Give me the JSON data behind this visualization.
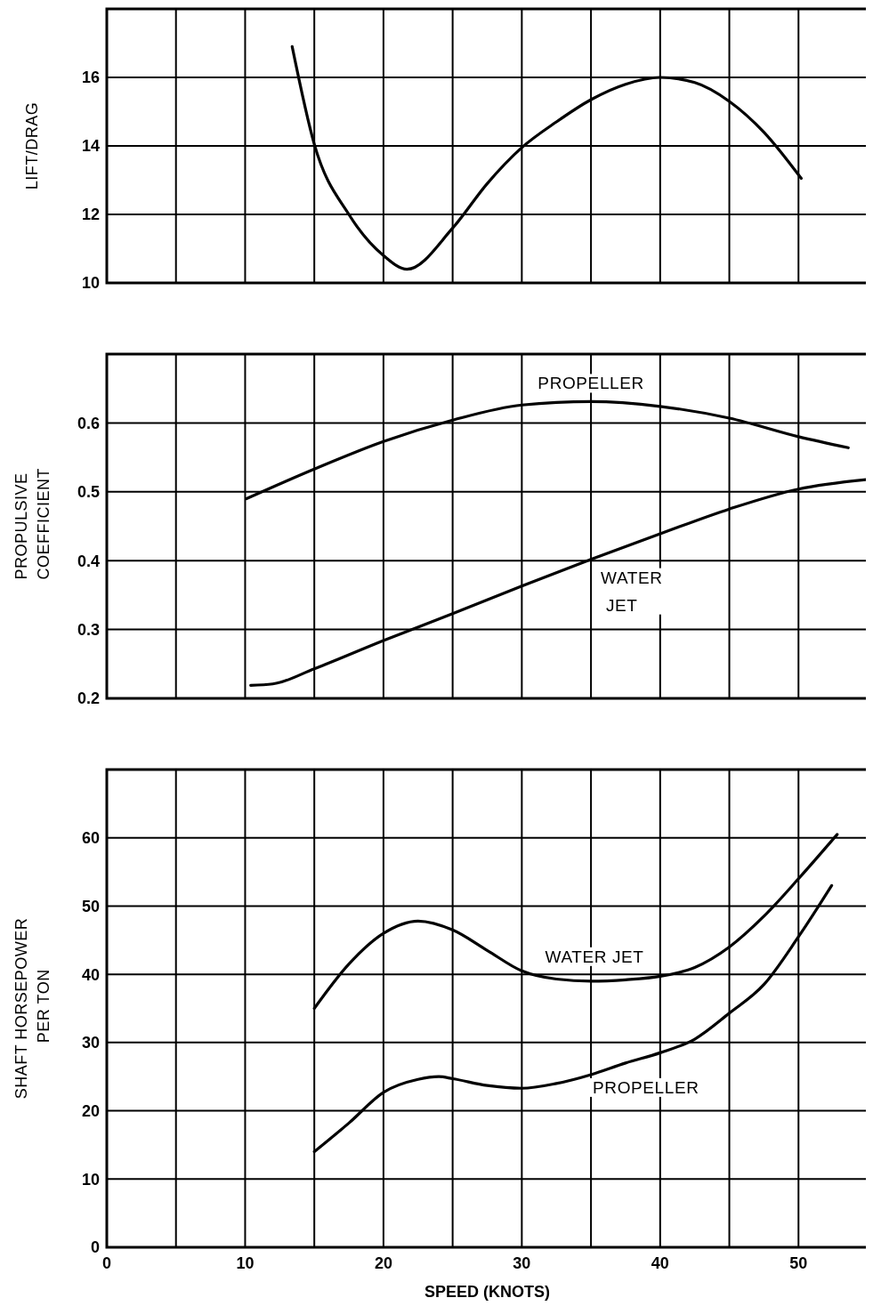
{
  "chart_data": [
    {
      "type": "line",
      "ylabel": "LIFT/DRAG",
      "xlim": [
        0,
        55
      ],
      "xticks": [
        0,
        {
          "value": 5,
          "label": null
        },
        10,
        {
          "value": 15,
          "label": null
        },
        20,
        {
          "value": 25,
          "label": null
        },
        30,
        {
          "value": 35,
          "label": null
        },
        40,
        {
          "value": 45,
          "label": null
        },
        50
      ],
      "ylim": [
        10,
        18
      ],
      "yticks": [
        10,
        12,
        14,
        16
      ],
      "grid": true,
      "tick_labels": "y",
      "series": [
        {
          "color": "#000000",
          "x": [
            13.4,
            15,
            17.5,
            20,
            21.7,
            25,
            27.5,
            30,
            32.5,
            35,
            37.5,
            40,
            42.5,
            45,
            47.5,
            50.2
          ],
          "values": [
            16.9,
            14.05,
            12.0,
            10.8,
            10.4,
            11.6,
            12.9,
            13.95,
            14.7,
            15.35,
            15.8,
            16.0,
            15.85,
            15.3,
            14.4,
            13.05
          ]
        }
      ]
    },
    {
      "type": "line",
      "ylabel": "PROPULSIVE COEFFICIENT",
      "xlim": [
        0,
        55
      ],
      "xticks": [
        0,
        {
          "value": 5,
          "label": null
        },
        10,
        {
          "value": 15,
          "label": null
        },
        20,
        {
          "value": 25,
          "label": null
        },
        30,
        {
          "value": 35,
          "label": null
        },
        40,
        {
          "value": 45,
          "label": null
        },
        50
      ],
      "ylim": [
        0.2,
        0.7
      ],
      "yticks": [
        0.2,
        0.3,
        0.4,
        0.5,
        0.6
      ],
      "grid": true,
      "tick_labels": "y",
      "series": [
        {
          "name": "PROPELLER",
          "color": "#000000",
          "x": [
            10.1,
            15,
            20,
            25,
            30,
            35,
            40,
            45,
            50,
            53.6
          ],
          "values": [
            0.49,
            0.533,
            0.573,
            0.604,
            0.626,
            0.631,
            0.624,
            0.607,
            0.58,
            0.564
          ]
        },
        {
          "name": "WATER JET",
          "color": "#000000",
          "x": [
            10.4,
            12,
            15,
            20,
            25,
            30,
            35,
            40,
            45,
            50,
            55
          ],
          "values": [
            0.219,
            0.221,
            0.243,
            0.284,
            0.323,
            0.363,
            0.402,
            0.439,
            0.475,
            0.504,
            0.518
          ]
        }
      ]
    },
    {
      "type": "line",
      "xlabel": "SPEED (KNOTS)",
      "ylabel": "SHAFT HORSEPOWER PER TON",
      "xlim": [
        0,
        55
      ],
      "xticks": [
        0,
        {
          "value": 5,
          "label": null
        },
        10,
        {
          "value": 15,
          "label": null
        },
        20,
        {
          "value": 25,
          "label": null
        },
        30,
        {
          "value": 35,
          "label": null
        },
        40,
        {
          "value": 45,
          "label": null
        },
        50
      ],
      "ylim": [
        0,
        70
      ],
      "yticks": [
        0,
        10,
        20,
        30,
        40,
        50,
        60
      ],
      "grid": true,
      "series": [
        {
          "name": "WATER JET",
          "color": "#000000",
          "x": [
            15,
            17.5,
            20,
            22.5,
            25,
            27.5,
            30,
            32.5,
            35,
            37.5,
            40,
            42.5,
            45,
            47.5,
            50,
            52.8
          ],
          "values": [
            35,
            41.5,
            46,
            47.8,
            46.5,
            43.5,
            40.5,
            39.3,
            39,
            39.2,
            39.7,
            41,
            44,
            48.5,
            54,
            60.5
          ]
        },
        {
          "name": "PROPELLER",
          "color": "#000000",
          "x": [
            15,
            17.5,
            20,
            22.5,
            24,
            25,
            27.5,
            30,
            32.5,
            35,
            37.5,
            40,
            42.5,
            45,
            47.5,
            50,
            52.4
          ],
          "values": [
            14,
            18.2,
            22.7,
            24.6,
            25,
            24.7,
            23.7,
            23.3,
            24,
            25.3,
            27,
            28.5,
            30.5,
            34.3,
            38.5,
            45.5,
            53
          ]
        }
      ]
    }
  ]
}
